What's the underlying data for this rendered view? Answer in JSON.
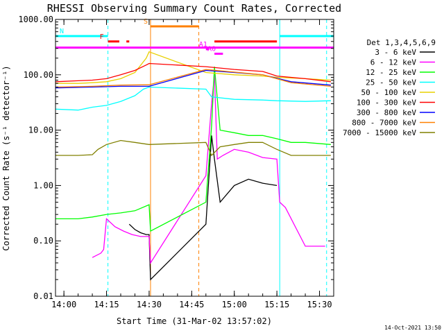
{
  "chart_data": {
    "type": "line",
    "title": "RHESSI Observing Summary Count Rates, Corrected",
    "xlabel": "Start Time (31-Mar-02 13:57:02)",
    "ylabel": "Corrected Count Rate (s⁻¹ detector⁻¹)",
    "footer": "14-Oct-2021 13:50",
    "y_scale": "log",
    "ylim": [
      0.01,
      1000
    ],
    "xlim": [
      "13:57:02",
      "15:35:00"
    ],
    "x_ticks": [
      "14:00",
      "14:15",
      "14:30",
      "14:45",
      "15:00",
      "15:15",
      "15:30"
    ],
    "y_ticks": [
      "0.01",
      "0.10",
      "1.00",
      "10.00",
      "100.00",
      "1000.00"
    ],
    "legend_title": "Det 1,3,4,5,6,9",
    "legend_placement": "right",
    "series": [
      {
        "name": "3 - 6 keV",
        "color": "#000000",
        "x": [
          "14:23",
          "14:25",
          "14:27",
          "14:29",
          "14:30",
          "14:30:30",
          "14:50",
          "14:52",
          "14:53",
          "14:55",
          "15:00",
          "15:05",
          "15:10",
          "15:15"
        ],
        "values": [
          0.2,
          0.16,
          0.14,
          0.13,
          0.13,
          0.02,
          0.2,
          8.0,
          3.0,
          0.5,
          1.0,
          1.3,
          1.1,
          1.0
        ]
      },
      {
        "name": "6 - 12 keV",
        "color": "#ff00ff",
        "x": [
          "14:10",
          "14:13",
          "14:14",
          "14:15",
          "14:18",
          "14:21",
          "14:24",
          "14:27",
          "14:30",
          "14:30:30",
          "14:50",
          "14:52",
          "14:53",
          "14:54",
          "14:56",
          "15:00",
          "15:05",
          "15:10",
          "15:15",
          "15:16",
          "15:18",
          "15:25",
          "15:32"
        ],
        "values": [
          0.05,
          0.06,
          0.07,
          0.25,
          0.18,
          0.15,
          0.13,
          0.12,
          0.12,
          0.04,
          1.5,
          30,
          100,
          3.0,
          3.5,
          4.5,
          4.0,
          3.2,
          3.0,
          0.5,
          0.4,
          0.08,
          0.08
        ]
      },
      {
        "name": "12 - 25 keV",
        "color": "#00ff00",
        "x": [
          "13:57:02",
          "14:05",
          "14:10",
          "14:15",
          "14:20",
          "14:25",
          "14:30",
          "14:30:30",
          "14:50",
          "14:52",
          "14:53",
          "14:55",
          "15:00",
          "15:05",
          "15:10",
          "15:15",
          "15:20",
          "15:25",
          "15:34"
        ],
        "values": [
          0.25,
          0.25,
          0.27,
          0.3,
          0.32,
          0.35,
          0.45,
          0.15,
          0.5,
          12,
          140,
          10,
          9,
          8,
          8,
          7,
          6,
          6,
          5.5
        ]
      },
      {
        "name": "25 - 50 keV",
        "color": "#00ffff",
        "x": [
          "13:57:02",
          "14:05",
          "14:10",
          "14:15",
          "14:20",
          "14:25",
          "14:28",
          "14:30",
          "14:50",
          "14:52",
          "15:00",
          "15:10",
          "15:15",
          "15:25",
          "15:34"
        ],
        "values": [
          24,
          23,
          26,
          28,
          33,
          42,
          55,
          60,
          55,
          40,
          36,
          35,
          34,
          33,
          34
        ]
      },
      {
        "name": "50 - 100 keV",
        "color": "#e8d000",
        "x": [
          "13:57:02",
          "14:05",
          "14:10",
          "14:15",
          "14:20",
          "14:25",
          "14:29",
          "14:30",
          "14:50",
          "15:00",
          "15:10",
          "15:15",
          "15:25",
          "15:34"
        ],
        "values": [
          70,
          70,
          72,
          75,
          85,
          110,
          200,
          260,
          110,
          100,
          95,
          90,
          85,
          80
        ]
      },
      {
        "name": "100 - 300 keV",
        "color": "#ff0000",
        "x": [
          "13:57:02",
          "14:05",
          "14:10",
          "14:15",
          "14:20",
          "14:25",
          "14:29",
          "14:30",
          "14:50",
          "15:00",
          "15:10",
          "15:15",
          "15:25",
          "15:34"
        ],
        "values": [
          75,
          78,
          80,
          85,
          100,
          120,
          150,
          160,
          140,
          125,
          115,
          95,
          85,
          75
        ]
      },
      {
        "name": "300 - 800 keV",
        "color": "#0000ff",
        "x": [
          "13:57:02",
          "14:10",
          "14:20",
          "14:30",
          "14:50",
          "15:00",
          "15:10",
          "15:20",
          "15:34"
        ],
        "values": [
          58,
          60,
          62,
          62,
          120,
          110,
          100,
          75,
          65
        ]
      },
      {
        "name": "800 - 7000 keV",
        "color": "#ff8000",
        "x": [
          "13:57:02",
          "14:10",
          "14:20",
          "14:30",
          "14:50",
          "15:00",
          "15:10",
          "15:20",
          "15:34"
        ],
        "values": [
          60,
          62,
          65,
          66,
          125,
          112,
          100,
          72,
          62
        ]
      },
      {
        "name": "7000 - 15000 keV",
        "color": "#808000",
        "x": [
          "13:57:02",
          "14:05",
          "14:10",
          "14:12",
          "14:15",
          "14:20",
          "14:25",
          "14:30",
          "14:50",
          "14:52",
          "14:55",
          "15:00",
          "15:05",
          "15:10",
          "15:15",
          "15:20",
          "15:25",
          "15:34"
        ],
        "values": [
          3.5,
          3.5,
          3.6,
          4.5,
          5.5,
          6.5,
          6.0,
          5.5,
          6.0,
          3.5,
          5.0,
          5.5,
          6.0,
          6.0,
          4.5,
          3.5,
          3.5,
          3.5
        ]
      }
    ],
    "flag_bars": [
      {
        "label": "N",
        "color": "#00ffff",
        "start": "13:57:02",
        "end": "14:15:30",
        "level": 500
      },
      {
        "label": "",
        "color": "#00ffff",
        "start": "15:16",
        "end": "15:35:00",
        "level": 500
      },
      {
        "label": "F",
        "color": "#ff0000",
        "start": "14:15:30",
        "end": "14:19:30",
        "level": 400
      },
      {
        "label": "",
        "color": "#ff0000",
        "start": "14:22",
        "end": "14:23",
        "level": 400
      },
      {
        "label": "",
        "color": "#ff0000",
        "start": "14:53",
        "end": "15:15",
        "level": 400
      },
      {
        "label": "S",
        "color": "#ff8000",
        "start": "14:30:30",
        "end": "14:47:30",
        "level": 750
      },
      {
        "label": "",
        "color": "#ff00ff",
        "start": "13:57:02",
        "end": "15:35:00",
        "level": 310
      },
      {
        "label": "A1",
        "color": "#ff00ff",
        "start": "14:50",
        "end": "14:51",
        "level": 290
      },
      {
        "label": "A0",
        "color": "#ff00ff",
        "start": "14:53",
        "end": "14:56",
        "level": 240
      }
    ],
    "vertical_lines": [
      {
        "time": "14:15:30",
        "color": "#00ffff",
        "style": "dashed"
      },
      {
        "time": "15:16",
        "color": "#00ffff",
        "style": "solid"
      },
      {
        "time": "15:32:30",
        "color": "#00ffff",
        "style": "dashed"
      },
      {
        "time": "13:57:02",
        "color": "#00ffff",
        "style": "solid"
      },
      {
        "time": "14:30:30",
        "color": "#ff8000",
        "style": "solid"
      },
      {
        "time": "14:47:30",
        "color": "#ff8000",
        "style": "dashed"
      }
    ],
    "grid": false
  }
}
